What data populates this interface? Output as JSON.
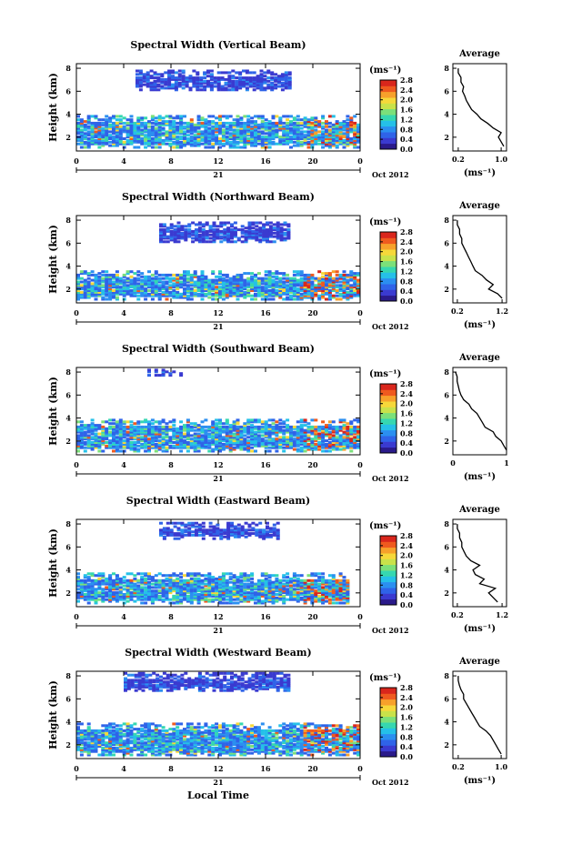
{
  "figure": {
    "time_axis_label": "Local Time",
    "date_label": "Oct 2012",
    "day_label": "21",
    "colorbar": {
      "unit_label": "(ms⁻¹)",
      "colors": [
        "#2a1a8a",
        "#3a3ad0",
        "#2f63e8",
        "#2b8ff0",
        "#25c0e8",
        "#36d7b0",
        "#7be07a",
        "#c9e24a",
        "#f6d83a",
        "#f7a12b",
        "#ef5a1f",
        "#d9261c"
      ]
    },
    "average_panel": {
      "title": "Average",
      "xlabel": "(ms⁻¹)",
      "y_ticks": [
        "2",
        "4",
        "6",
        "8"
      ]
    },
    "height_axis": {
      "label": "Height (km)",
      "ticks": [
        "2",
        "4",
        "6",
        "8"
      ]
    },
    "time_ticks": [
      "0",
      "4",
      "8",
      "12",
      "16",
      "20",
      "0"
    ]
  },
  "chart_data": [
    {
      "type": "heatmap",
      "title": "Spectral Width (Vertical Beam)",
      "ylabel": "Height (km)",
      "ylim": [
        0.8,
        8.4
      ],
      "xlabel": "Local Time",
      "xlim": [
        0,
        24
      ],
      "colorbar_ticks": [
        "2.8",
        "2.4",
        "2.0",
        "1.6",
        "1.2",
        "0.8",
        "0.4",
        "0.0"
      ],
      "colorbar_range": [
        0,
        2.8
      ],
      "echo_bands": [
        {
          "t_start": 0,
          "t_end": 24,
          "h_bottom": 1.0,
          "h_top": 3.7
        },
        {
          "t_start": 5,
          "t_end": 18,
          "h_bottom": 6.0,
          "h_top": 7.8
        }
      ],
      "average_profile": {
        "xlim": [
          0.1,
          1.1
        ],
        "x_ticks": [
          "0.2",
          "1.0"
        ],
        "ylim": [
          0.8,
          8.4
        ],
        "height": [
          1.2,
          1.6,
          2.0,
          2.4,
          2.8,
          3.2,
          3.6,
          4.0,
          4.4,
          4.8,
          5.2,
          5.6,
          6.0,
          6.4,
          6.8,
          7.2,
          7.6,
          8.0
        ],
        "width": [
          1.05,
          1.0,
          0.95,
          1.0,
          0.85,
          0.75,
          0.62,
          0.55,
          0.45,
          0.4,
          0.35,
          0.32,
          0.28,
          0.3,
          0.25,
          0.25,
          0.2,
          0.2
        ]
      }
    },
    {
      "type": "heatmap",
      "title": "Spectral Width (Northward Beam)",
      "ylabel": "Height (km)",
      "ylim": [
        0.8,
        8.4
      ],
      "xlabel": "Local Time",
      "xlim": [
        0,
        24
      ],
      "colorbar_ticks": [
        "2.8",
        "2.4",
        "2.0",
        "1.6",
        "1.2",
        "0.8",
        "0.4",
        "0.0"
      ],
      "colorbar_range": [
        0,
        2.8
      ],
      "echo_bands": [
        {
          "t_start": 0,
          "t_end": 24,
          "h_bottom": 1.0,
          "h_top": 3.5
        },
        {
          "t_start": 7,
          "t_end": 18,
          "h_bottom": 6.0,
          "h_top": 7.8
        }
      ],
      "average_profile": {
        "xlim": [
          0.1,
          1.3
        ],
        "x_ticks": [
          "0.2",
          "1.2"
        ],
        "ylim": [
          0.8,
          8.4
        ],
        "height": [
          1.2,
          1.6,
          2.0,
          2.4,
          2.8,
          3.2,
          3.6,
          4.0,
          4.4,
          4.8,
          5.2,
          5.6,
          6.0,
          6.4,
          6.8,
          7.2,
          7.6,
          8.0
        ],
        "width": [
          1.2,
          1.1,
          0.9,
          1.0,
          0.85,
          0.75,
          0.6,
          0.55,
          0.5,
          0.45,
          0.4,
          0.35,
          0.3,
          0.3,
          0.25,
          0.25,
          0.2,
          0.2
        ]
      }
    },
    {
      "type": "heatmap",
      "title": "Spectral Width (Southward Beam)",
      "ylabel": "Height (km)",
      "ylim": [
        0.8,
        8.4
      ],
      "xlabel": "Local Time",
      "xlim": [
        0,
        24
      ],
      "colorbar_ticks": [
        "2.8",
        "2.4",
        "2.0",
        "1.6",
        "1.2",
        "0.8",
        "0.4",
        "0.0"
      ],
      "colorbar_range": [
        0,
        2.8
      ],
      "echo_bands": [
        {
          "t_start": 0,
          "t_end": 24,
          "h_bottom": 1.0,
          "h_top": 3.8
        },
        {
          "t_start": 6,
          "t_end": 9,
          "h_bottom": 7.6,
          "h_top": 8.2
        }
      ],
      "average_profile": {
        "xlim": [
          0.0,
          1.0
        ],
        "x_ticks": [
          "0",
          "1"
        ],
        "ylim": [
          0.8,
          8.4
        ],
        "height": [
          1.2,
          1.6,
          2.0,
          2.4,
          2.8,
          3.2,
          3.6,
          4.0,
          4.4,
          4.8,
          5.2,
          5.6,
          6.0,
          6.4,
          6.8,
          7.2,
          7.6,
          8.0
        ],
        "width": [
          1.0,
          0.95,
          0.9,
          0.8,
          0.75,
          0.6,
          0.55,
          0.5,
          0.45,
          0.35,
          0.3,
          0.2,
          0.15,
          0.12,
          0.1,
          0.08,
          0.08,
          0.05
        ]
      }
    },
    {
      "type": "heatmap",
      "title": "Spectral Width (Eastward Beam)",
      "ylabel": "Height (km)",
      "ylim": [
        0.8,
        8.4
      ],
      "xlabel": "Local Time",
      "xlim": [
        0,
        24
      ],
      "colorbar_ticks": [
        "2.8",
        "2.4",
        "2.0",
        "1.6",
        "1.2",
        "0.8",
        "0.4",
        "0.0"
      ],
      "colorbar_range": [
        0,
        2.8
      ],
      "echo_bands": [
        {
          "t_start": 0,
          "t_end": 23,
          "h_bottom": 1.0,
          "h_top": 3.6
        },
        {
          "t_start": 7,
          "t_end": 17,
          "h_bottom": 6.6,
          "h_top": 8.0
        }
      ],
      "average_profile": {
        "xlim": [
          0.1,
          1.3
        ],
        "x_ticks": [
          "0.2",
          "1.2"
        ],
        "ylim": [
          0.8,
          8.4
        ],
        "height": [
          1.2,
          1.6,
          2.0,
          2.4,
          2.8,
          3.2,
          3.6,
          4.0,
          4.4,
          4.8,
          5.2,
          5.6,
          6.0,
          6.4,
          6.8,
          7.2,
          7.6,
          8.0
        ],
        "width": [
          1.1,
          1.0,
          0.9,
          1.05,
          0.7,
          0.8,
          0.6,
          0.55,
          0.7,
          0.5,
          0.4,
          0.35,
          0.3,
          0.3,
          0.25,
          0.25,
          0.2,
          0.2
        ]
      }
    },
    {
      "type": "heatmap",
      "title": "Spectral Width (Westward Beam)",
      "ylabel": "Height (km)",
      "ylim": [
        0.8,
        8.4
      ],
      "xlabel": "Local Time",
      "xlim": [
        0,
        24
      ],
      "colorbar_ticks": [
        "2.8",
        "2.4",
        "2.0",
        "1.6",
        "1.2",
        "0.8",
        "0.4",
        "0.0"
      ],
      "colorbar_range": [
        0,
        2.8
      ],
      "echo_bands": [
        {
          "t_start": 0,
          "t_end": 24,
          "h_bottom": 1.0,
          "h_top": 3.8
        },
        {
          "t_start": 4,
          "t_end": 18,
          "h_bottom": 6.6,
          "h_top": 8.2
        }
      ],
      "average_profile": {
        "xlim": [
          0.1,
          1.1
        ],
        "x_ticks": [
          "0.2",
          "1.0"
        ],
        "ylim": [
          0.8,
          8.4
        ],
        "height": [
          1.2,
          1.6,
          2.0,
          2.4,
          2.8,
          3.2,
          3.6,
          4.0,
          4.4,
          4.8,
          5.2,
          5.6,
          6.0,
          6.4,
          6.8,
          7.2,
          7.6,
          8.0
        ],
        "width": [
          1.0,
          0.95,
          0.9,
          0.85,
          0.8,
          0.72,
          0.6,
          0.55,
          0.5,
          0.45,
          0.4,
          0.35,
          0.3,
          0.3,
          0.25,
          0.22,
          0.2,
          0.2
        ]
      }
    }
  ]
}
